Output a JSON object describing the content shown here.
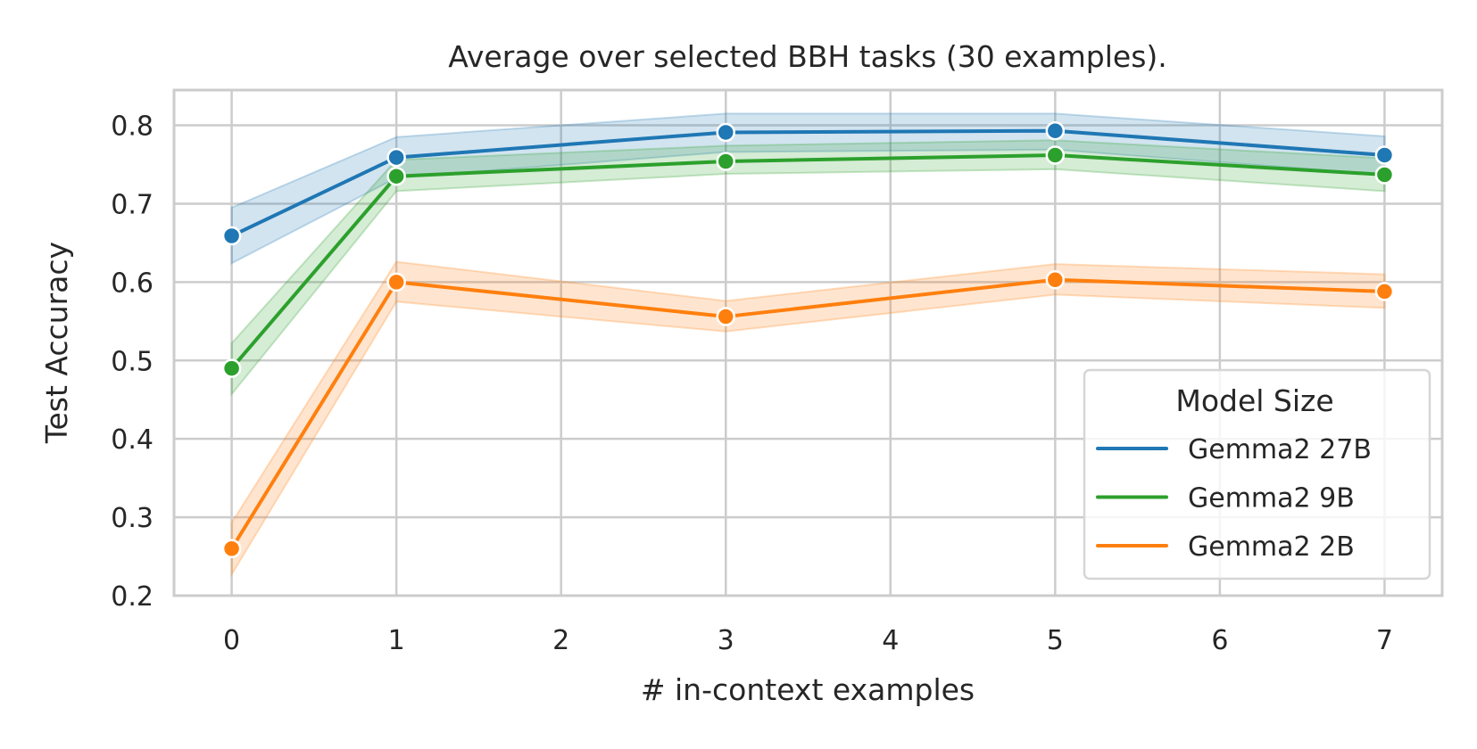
{
  "chart_data": {
    "type": "line",
    "title": "Average over selected BBH tasks (30 examples).",
    "xlabel": "# in-context examples",
    "ylabel": "Test Accuracy",
    "x": [
      0,
      1,
      3,
      5,
      7
    ],
    "xticks": [
      0,
      1,
      2,
      3,
      4,
      5,
      6,
      7
    ],
    "yticks": [
      0.2,
      0.3,
      0.4,
      0.5,
      0.6,
      0.7,
      0.8
    ],
    "xlim": [
      -0.35,
      7.35
    ],
    "ylim": [
      0.2,
      0.845
    ],
    "grid": true,
    "legend_title": "Model Size",
    "legend_position": "lower right",
    "series": [
      {
        "name": "Gemma2 27B",
        "color": "#1f77b4",
        "values": [
          0.659,
          0.759,
          0.791,
          0.793,
          0.762
        ],
        "ci_lower": [
          0.624,
          0.733,
          0.766,
          0.769,
          0.737
        ],
        "ci_upper": [
          0.695,
          0.785,
          0.815,
          0.815,
          0.786
        ]
      },
      {
        "name": "Gemma2 9B",
        "color": "#2ca02c",
        "values": [
          0.49,
          0.735,
          0.754,
          0.762,
          0.737
        ],
        "ci_lower": [
          0.457,
          0.716,
          0.738,
          0.744,
          0.716
        ],
        "ci_upper": [
          0.522,
          0.756,
          0.774,
          0.781,
          0.758
        ]
      },
      {
        "name": "Gemma2 2B",
        "color": "#ff7f0e",
        "values": [
          0.26,
          0.6,
          0.556,
          0.603,
          0.588
        ],
        "ci_lower": [
          0.227,
          0.575,
          0.537,
          0.584,
          0.567
        ],
        "ci_upper": [
          0.293,
          0.626,
          0.576,
          0.623,
          0.61
        ]
      }
    ]
  }
}
